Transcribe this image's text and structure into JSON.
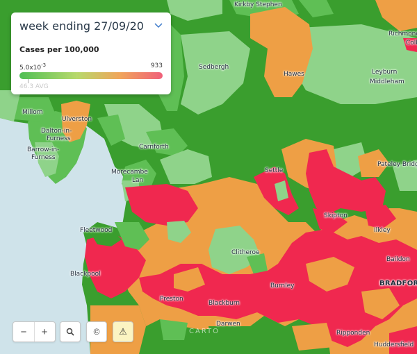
{
  "legend": {
    "period": "week ending 27/09/20",
    "metric": "Cases per 100,000",
    "min": "5.0x10",
    "min_exp": "-3",
    "max": "933",
    "avg": "46.3 AVG"
  },
  "places": [
    {
      "name": "Kirkby Stephen",
      "cls": ""
    },
    {
      "name": "Richmond",
      "cls": ""
    },
    {
      "name": "Colb",
      "cls": ""
    },
    {
      "name": "Sedbergh",
      "cls": ""
    },
    {
      "name": "Hawes",
      "cls": ""
    },
    {
      "name": "Leyburn",
      "cls": ""
    },
    {
      "name": "Middleham",
      "cls": ""
    },
    {
      "name": "Millom",
      "cls": ""
    },
    {
      "name": "Ulverston",
      "cls": ""
    },
    {
      "name": "Dalton-in-",
      "cls": ""
    },
    {
      "name": "Furness",
      "cls": ""
    },
    {
      "name": "Barrow-in-",
      "cls": ""
    },
    {
      "name": "Furness",
      "cls": ""
    },
    {
      "name": "Carnforth",
      "cls": ""
    },
    {
      "name": "Morecambe",
      "cls": ""
    },
    {
      "name": "Lan",
      "cls": ""
    },
    {
      "name": "Settle",
      "cls": ""
    },
    {
      "name": "Pateley Bridg",
      "cls": ""
    },
    {
      "name": "Skipton",
      "cls": ""
    },
    {
      "name": "Fleetwood",
      "cls": ""
    },
    {
      "name": "Ilkley",
      "cls": ""
    },
    {
      "name": "Clitheroe",
      "cls": ""
    },
    {
      "name": "Blackpool",
      "cls": ""
    },
    {
      "name": "Baildon",
      "cls": ""
    },
    {
      "name": "Burnley",
      "cls": ""
    },
    {
      "name": "BRADFOR",
      "cls": "big"
    },
    {
      "name": "Preston",
      "cls": ""
    },
    {
      "name": "Blackburn",
      "cls": ""
    },
    {
      "name": "Darwen",
      "cls": ""
    },
    {
      "name": "Ripponden",
      "cls": ""
    },
    {
      "name": "Huddersfield",
      "cls": ""
    }
  ],
  "controls": {
    "zoom_out": "−",
    "zoom_in": "+",
    "search": "⚲",
    "copyright": "©",
    "warning": "⚠"
  },
  "attribution": "CARTO",
  "colors": {
    "sea": "#cfe3ea",
    "dark_green": "#3a9e2e",
    "mid_green": "#5fbf55",
    "light_green": "#8fd38a",
    "orange": "#ee9f45",
    "red": "#f0284f",
    "warning_bg": "#fbf4c2"
  }
}
